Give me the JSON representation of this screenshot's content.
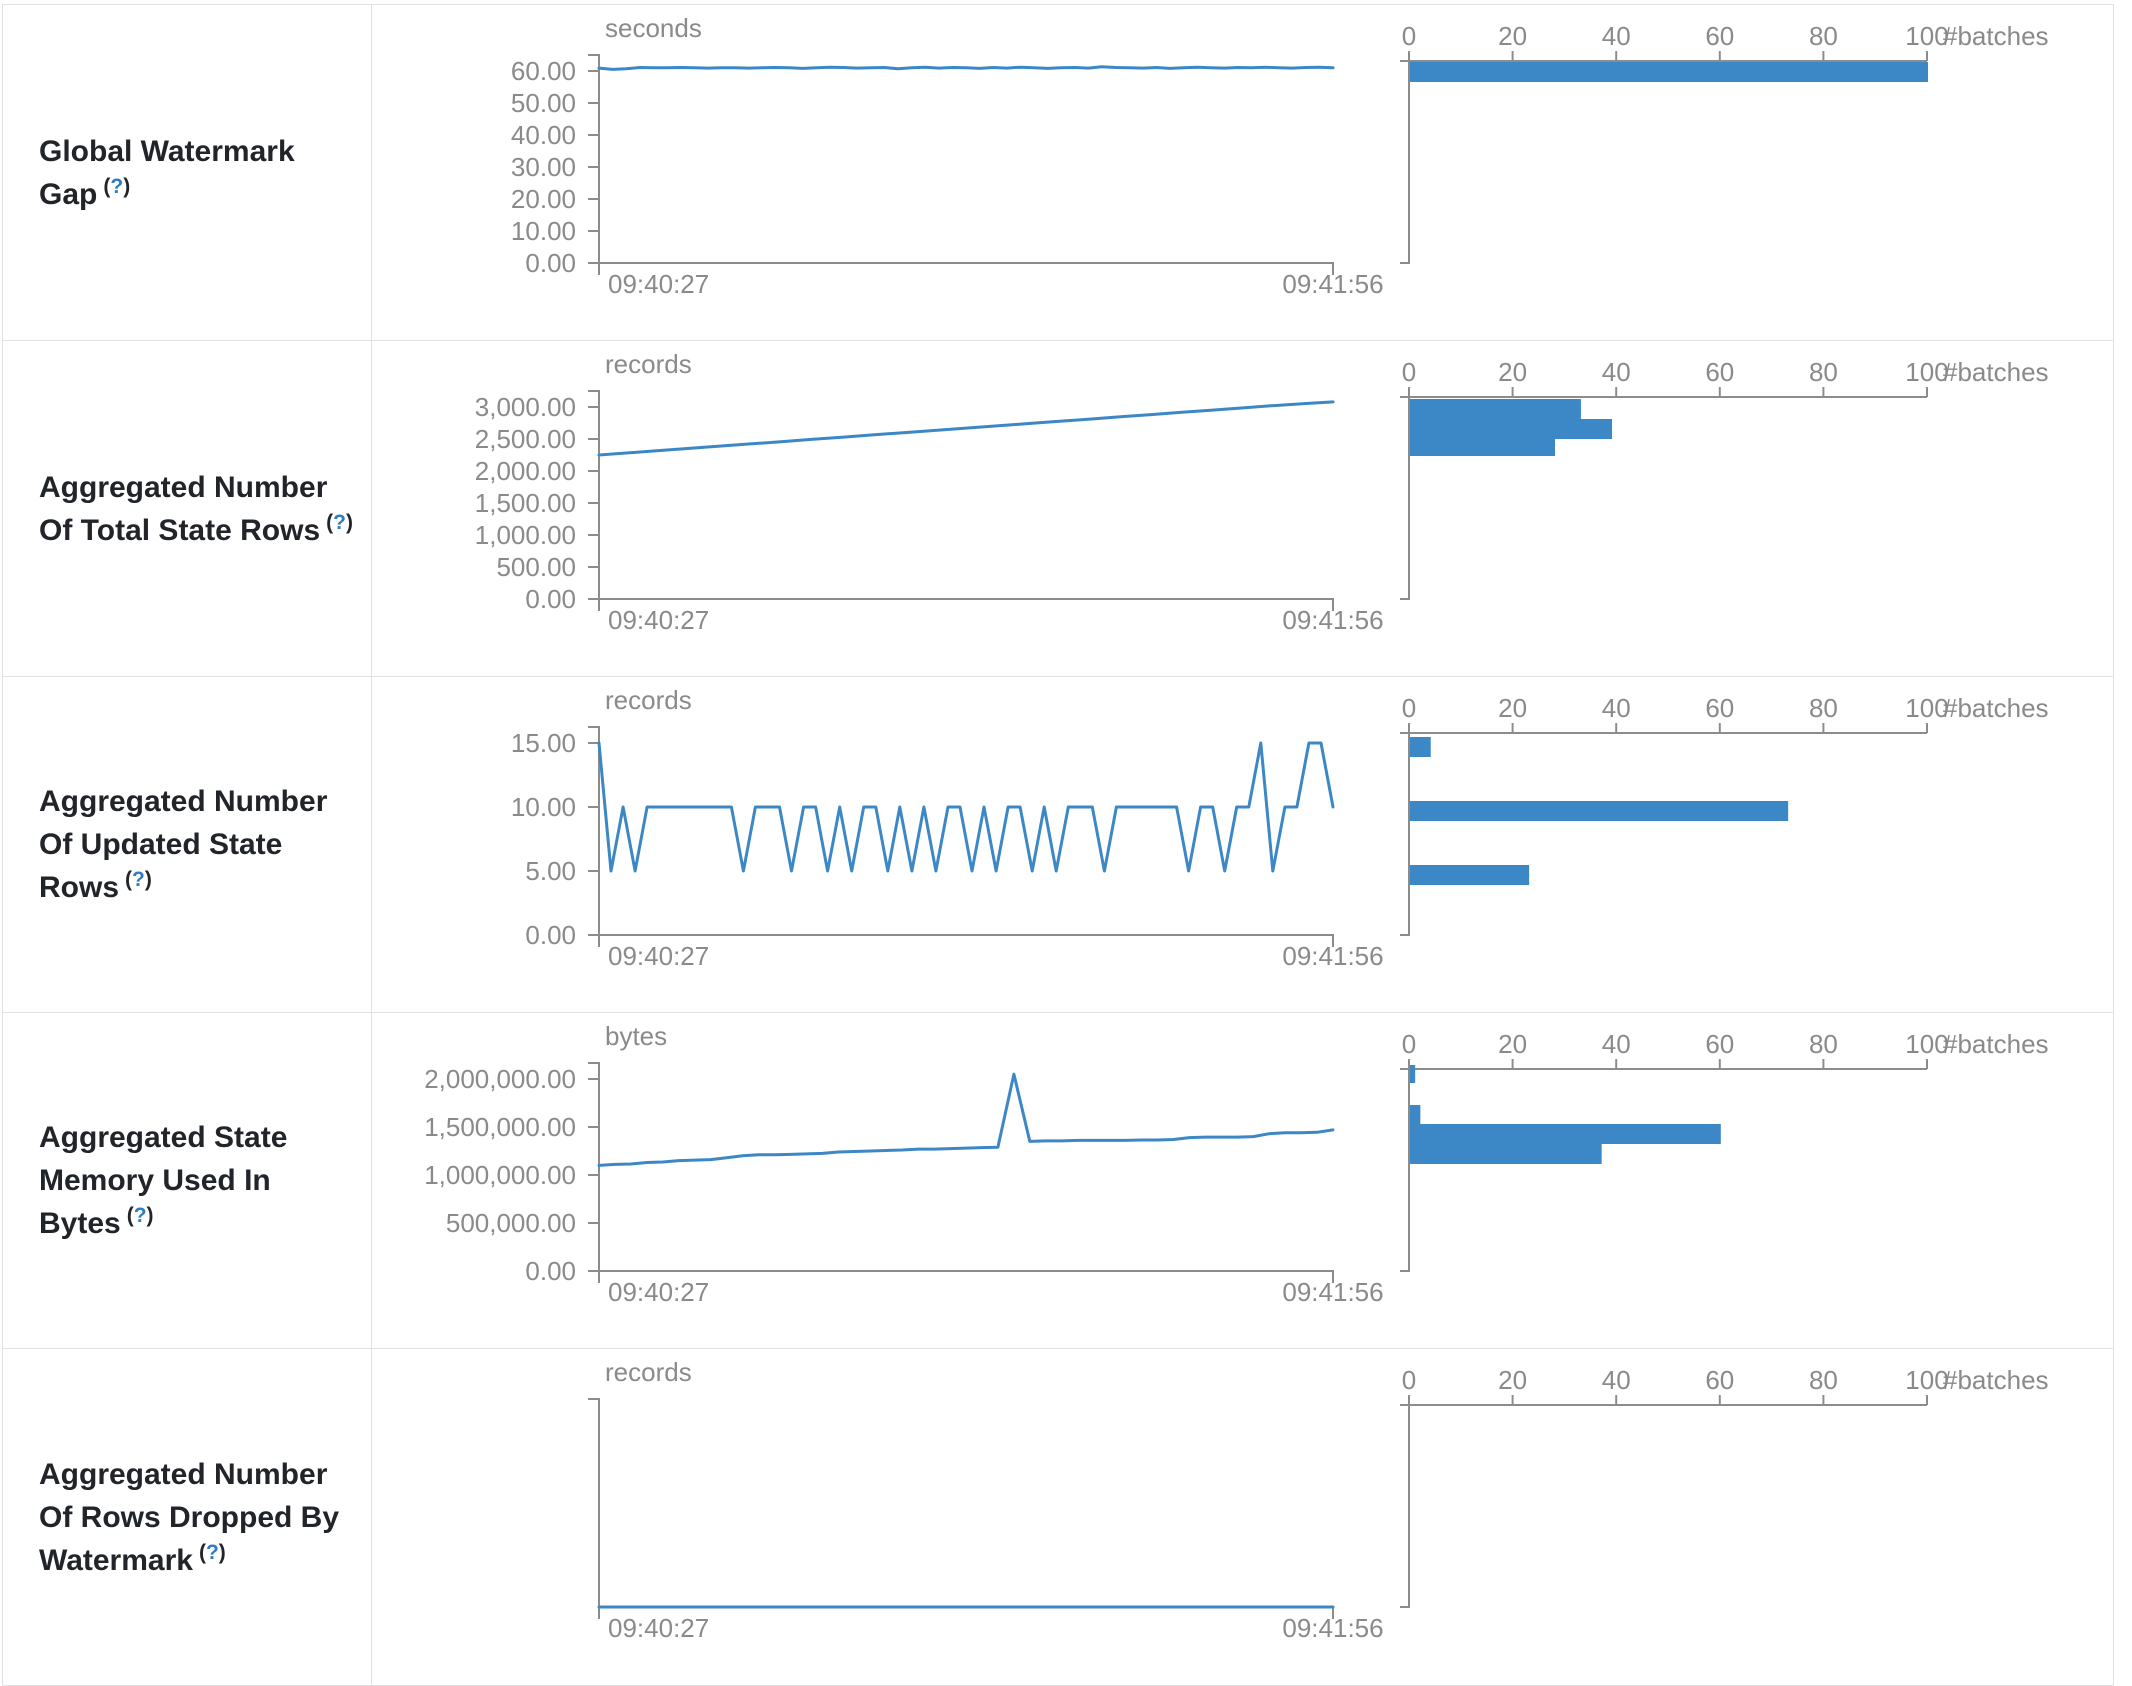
{
  "theme": {
    "accent_blue": "#3c87c5",
    "axis_line_gray": "#8c8c8c",
    "axis_text_gray": "#8a8a8a",
    "label_dark": "#212529",
    "help_blue": "#2e7cc3",
    "border_gray": "#dee2e6"
  },
  "table": {
    "rows": [
      {
        "label": "Global Watermark Gap",
        "help_prefix": "(",
        "help_symbol": "?",
        "help_suffix": ")",
        "timeline": {
          "type": "line",
          "unit": "seconds",
          "yticks": [
            "60.00",
            "50.00",
            "40.00",
            "30.00",
            "20.00",
            "10.00",
            "0.00"
          ],
          "ymax": 60,
          "x_start": "09:40:27",
          "x_end": "09:41:56",
          "values": [
            60.9,
            60.5,
            60.7,
            61.1,
            61.0,
            61.0,
            61.1,
            61.0,
            60.9,
            61.0,
            61.0,
            60.9,
            61.0,
            61.1,
            61.0,
            60.8,
            61.0,
            61.2,
            61.1,
            60.9,
            61.0,
            61.1,
            60.7,
            61.0,
            61.2,
            60.9,
            61.1,
            61.0,
            60.8,
            61.1,
            60.9,
            61.2,
            61.0,
            60.8,
            61.0,
            61.1,
            60.9,
            61.3,
            61.1,
            61.0,
            60.9,
            61.1,
            60.8,
            61.0,
            61.2,
            61.0,
            60.9,
            61.1,
            61.0,
            61.2,
            61.0,
            60.9,
            61.1,
            61.2,
            61.0
          ]
        },
        "histogram": {
          "type": "bar",
          "ticks": [
            "0",
            "20",
            "40",
            "60",
            "80",
            "100"
          ],
          "axis_max": 100,
          "unit": "#batches",
          "bars": [
            {
              "count": 100,
              "y": 57,
              "h": 20
            }
          ]
        }
      },
      {
        "label": "Aggregated Number Of Total State Rows",
        "help_prefix": "(",
        "help_symbol": "?",
        "help_suffix": ")",
        "timeline": {
          "type": "line",
          "unit": "records",
          "yticks": [
            "3,000.00",
            "2,500.00",
            "2,000.00",
            "1,500.00",
            "1,000.00",
            "500.00",
            "0.00"
          ],
          "ymax": 3000,
          "x_start": "09:40:27",
          "x_end": "09:41:56",
          "values": [
            2250,
            2285,
            2320,
            2355,
            2390,
            2425,
            2460,
            2495,
            2530,
            2565,
            2600,
            2635,
            2670,
            2705,
            2740,
            2775,
            2810,
            2845,
            2880,
            2915,
            2950,
            2985,
            3020,
            3050,
            3080
          ]
        },
        "histogram": {
          "type": "bar",
          "ticks": [
            "0",
            "20",
            "40",
            "60",
            "80",
            "100"
          ],
          "axis_max": 100,
          "unit": "#batches",
          "bars": [
            {
              "count": 33,
              "y": 58,
              "h": 20
            },
            {
              "count": 39,
              "y": 78,
              "h": 20
            },
            {
              "count": 28,
              "y": 98,
              "h": 17
            }
          ]
        }
      },
      {
        "label": "Aggregated Number Of Updated State Rows",
        "help_prefix": "(",
        "help_symbol": "?",
        "help_suffix": ")",
        "timeline": {
          "type": "line",
          "unit": "records",
          "yticks": [
            "15.00",
            "10.00",
            "5.00",
            "0.00"
          ],
          "ymax": 15,
          "x_start": "09:40:27",
          "x_end": "09:41:56",
          "values": [
            15,
            5,
            10,
            5,
            10,
            10,
            10,
            10,
            10,
            10,
            10,
            10,
            5,
            10,
            10,
            10,
            5,
            10,
            10,
            5,
            10,
            5,
            10,
            10,
            5,
            10,
            5,
            10,
            5,
            10,
            10,
            5,
            10,
            5,
            10,
            10,
            5,
            10,
            5,
            10,
            10,
            10,
            5,
            10,
            10,
            10,
            10,
            10,
            10,
            5,
            10,
            10,
            5,
            10,
            10,
            15,
            5,
            10,
            10,
            15,
            15,
            10
          ]
        },
        "histogram": {
          "type": "bar",
          "ticks": [
            "0",
            "20",
            "40",
            "60",
            "80",
            "100"
          ],
          "axis_max": 100,
          "unit": "#batches",
          "bars": [
            {
              "count": 4,
              "y": 60,
              "h": 20
            },
            {
              "count": 73,
              "y": 124,
              "h": 20
            },
            {
              "count": 23,
              "y": 188,
              "h": 20
            }
          ]
        }
      },
      {
        "label": "Aggregated State Memory Used In Bytes",
        "help_prefix": "(",
        "help_symbol": "?",
        "help_suffix": ")",
        "timeline": {
          "type": "line",
          "unit": "bytes",
          "yticks": [
            "2,000,000.00",
            "1,500,000.00",
            "1,000,000.00",
            "500,000.00",
            "0.00"
          ],
          "ymax": 2000000,
          "x_start": "09:40:27",
          "x_end": "09:41:56",
          "values": [
            1100000,
            1110000,
            1115000,
            1130000,
            1135000,
            1150000,
            1155000,
            1160000,
            1180000,
            1200000,
            1210000,
            1210000,
            1215000,
            1220000,
            1225000,
            1240000,
            1245000,
            1250000,
            1255000,
            1260000,
            1270000,
            1270000,
            1275000,
            1280000,
            1285000,
            1290000,
            2050000,
            1350000,
            1355000,
            1355000,
            1360000,
            1360000,
            1360000,
            1360000,
            1365000,
            1365000,
            1370000,
            1390000,
            1395000,
            1395000,
            1395000,
            1400000,
            1430000,
            1440000,
            1440000,
            1445000,
            1470000
          ]
        },
        "histogram": {
          "type": "bar",
          "ticks": [
            "0",
            "20",
            "40",
            "60",
            "80",
            "100"
          ],
          "axis_max": 100,
          "unit": "#batches",
          "bars": [
            {
              "count": 1,
              "y": 52,
              "h": 18
            },
            {
              "count": 2,
              "y": 92,
              "h": 19
            },
            {
              "count": 60,
              "y": 111,
              "h": 20
            },
            {
              "count": 37,
              "y": 131,
              "h": 20
            }
          ]
        }
      },
      {
        "label": "Aggregated Number Of Rows Dropped By Watermark",
        "help_prefix": "(",
        "help_symbol": "?",
        "help_suffix": ")",
        "timeline": {
          "type": "line",
          "unit": "records",
          "yticks": [],
          "ymax": 1,
          "x_start": "09:40:27",
          "x_end": "09:41:56",
          "values": [
            0,
            0
          ]
        },
        "histogram": {
          "type": "bar",
          "ticks": [
            "0",
            "20",
            "40",
            "60",
            "80",
            "100"
          ],
          "axis_max": 100,
          "unit": "#batches",
          "bars": []
        }
      }
    ]
  }
}
